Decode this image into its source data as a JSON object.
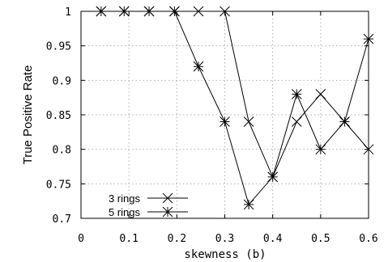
{
  "chart_data": {
    "type": "line",
    "xlabel": "skewness (b)",
    "ylabel": "True Positive Rate",
    "xlim": [
      0,
      0.6
    ],
    "ylim": [
      0.7,
      1.0
    ],
    "xticks": [
      "0",
      "0.1",
      "0.2",
      "0.3",
      "0.4",
      "0.5",
      "0.6"
    ],
    "yticks": [
      "0.7",
      "0.75",
      "0.8",
      "0.85",
      "0.9",
      "0.95",
      "1"
    ],
    "grid": true,
    "legend_position": "bottom-left",
    "series": [
      {
        "name": "3 rings",
        "marker": "x",
        "x": [
          0.042,
          0.09,
          0.142,
          0.195,
          0.245,
          0.3,
          0.35,
          0.4,
          0.45,
          0.5,
          0.55,
          0.6
        ],
        "y": [
          1.0,
          1.0,
          1.0,
          1.0,
          1.0,
          1.0,
          0.84,
          0.76,
          0.84,
          0.88,
          0.84,
          0.8
        ]
      },
      {
        "name": "5 rings",
        "marker": "star",
        "x": [
          0.042,
          0.09,
          0.142,
          0.195,
          0.245,
          0.3,
          0.35,
          0.4,
          0.45,
          0.5,
          0.55,
          0.6
        ],
        "y": [
          1.0,
          1.0,
          1.0,
          1.0,
          0.92,
          0.84,
          0.72,
          0.76,
          0.88,
          0.8,
          0.84,
          0.96
        ]
      }
    ]
  }
}
